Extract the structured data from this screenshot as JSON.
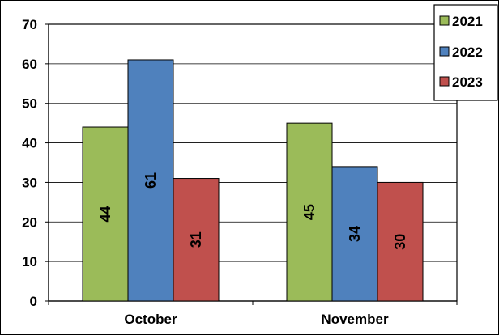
{
  "chart_data": {
    "type": "bar",
    "title": "",
    "xlabel": "",
    "ylabel": "",
    "categories": [
      "October",
      "November"
    ],
    "series": [
      {
        "name": "2021",
        "values": [
          44,
          45
        ],
        "color": "#9bbb59",
        "stroke": "#4f6228"
      },
      {
        "name": "2022",
        "values": [
          61,
          34
        ],
        "color": "#4f81bd",
        "stroke": "#17375e"
      },
      {
        "name": "2023",
        "values": [
          31,
          30
        ],
        "color": "#c0504d",
        "stroke": "#632523"
      }
    ],
    "ylim": [
      0,
      70
    ],
    "yticks": [
      0,
      10,
      20,
      30,
      40,
      50,
      60,
      70
    ],
    "grid": true,
    "legend_position": "top-right",
    "data_labels": "rotated-inside-bars"
  }
}
